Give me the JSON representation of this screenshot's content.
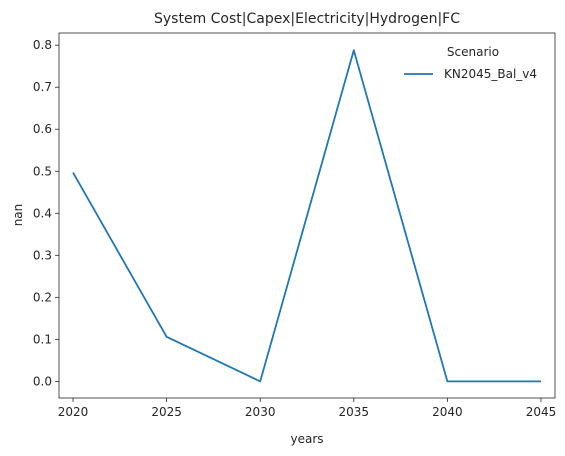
{
  "chart_data": {
    "type": "line",
    "title": "System Cost|Capex|Electricity|Hydrogen|FC",
    "xlabel": "years",
    "ylabel": "nan",
    "x": [
      2020,
      2025,
      2030,
      2035,
      2040,
      2045
    ],
    "xticks": [
      "2020",
      "2025",
      "2030",
      "2035",
      "2040",
      "2045"
    ],
    "yticks": [
      "0.0",
      "0.1",
      "0.2",
      "0.3",
      "0.4",
      "0.5",
      "0.6",
      "0.7",
      "0.8"
    ],
    "xlim": [
      2019.25,
      2045.75
    ],
    "ylim": [
      -0.0395,
      0.829
    ],
    "grid": false,
    "legend": {
      "title": "Scenario",
      "placement": "top-right"
    },
    "series": [
      {
        "name": "KN2045_Bal_v4",
        "color": "#1f77b4",
        "values": [
          0.497,
          0.106,
          0.0,
          0.788,
          0.0,
          0.0
        ]
      }
    ]
  }
}
